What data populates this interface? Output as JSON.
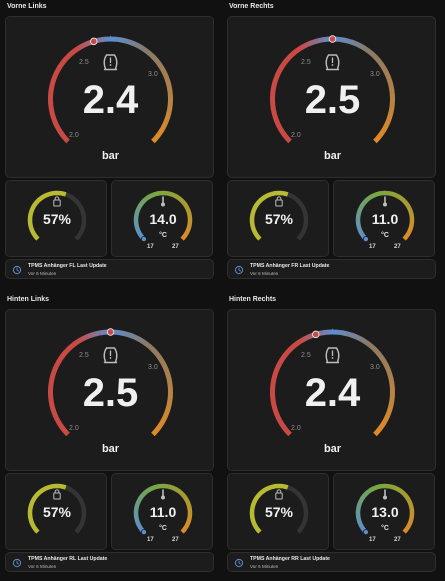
{
  "colors": {
    "red": "#c94a44",
    "orange": "#e08a25",
    "blue": "#5c8ecf",
    "green": "#79a83f",
    "yellow": "#b8bb32",
    "track": "#343434"
  },
  "sections": [
    {
      "title": "Vorne Links",
      "pressure": {
        "value": "2.4",
        "unit": "bar",
        "min_label": "2.0",
        "mid_label": "2.5",
        "max_label": "3.0",
        "icon": "tire-pressure-icon",
        "level": 0.44
      },
      "battery": {
        "value": "57%",
        "icon": "battery-lock-icon",
        "level": 0.57
      },
      "temperature": {
        "value": "14.0",
        "unit": "°C",
        "min": "17",
        "max": "27",
        "icon": "thermometer-icon",
        "level": 0.0
      },
      "info": {
        "title": "TPMS Anhänger FL Last Update",
        "subtitle": "Vor 6 Minuten",
        "icon": "clock-icon"
      }
    },
    {
      "title": "Vorne Rechts",
      "pressure": {
        "value": "2.5",
        "unit": "bar",
        "min_label": "2.0",
        "mid_label": "2.5",
        "max_label": "3.0",
        "icon": "tire-pressure-icon",
        "level": 0.5
      },
      "battery": {
        "value": "57%",
        "icon": "battery-lock-icon",
        "level": 0.57
      },
      "temperature": {
        "value": "11.0",
        "unit": "°C",
        "min": "17",
        "max": "27",
        "icon": "thermometer-icon",
        "level": 0.0
      },
      "info": {
        "title": "TPMS Anhänger FR Last Update",
        "subtitle": "Vor 6 Minuten",
        "icon": "clock-icon"
      }
    },
    {
      "title": "Hinten Links",
      "pressure": {
        "value": "2.5",
        "unit": "bar",
        "min_label": "2.0",
        "mid_label": "2.5",
        "max_label": "3.0",
        "icon": "tire-pressure-icon",
        "level": 0.5
      },
      "battery": {
        "value": "57%",
        "icon": "battery-lock-icon",
        "level": 0.57
      },
      "temperature": {
        "value": "11.0",
        "unit": "°C",
        "min": "17",
        "max": "27",
        "icon": "thermometer-icon",
        "level": 0.0
      },
      "info": {
        "title": "TPMS Anhänger RL Last Update",
        "subtitle": "Vor 6 Minuten",
        "icon": "clock-icon"
      }
    },
    {
      "title": "Hinten Rechts",
      "pressure": {
        "value": "2.4",
        "unit": "bar",
        "min_label": "2.0",
        "mid_label": "2.5",
        "max_label": "3.0",
        "icon": "tire-pressure-icon",
        "level": 0.44
      },
      "battery": {
        "value": "57%",
        "icon": "battery-lock-icon",
        "level": 0.57
      },
      "temperature": {
        "value": "13.0",
        "unit": "°C",
        "min": "17",
        "max": "27",
        "icon": "thermometer-icon",
        "level": 0.0
      },
      "info": {
        "title": "TPMS Anhänger RR Last Update",
        "subtitle": "Vor 6 Minuten",
        "icon": "clock-icon"
      }
    }
  ]
}
